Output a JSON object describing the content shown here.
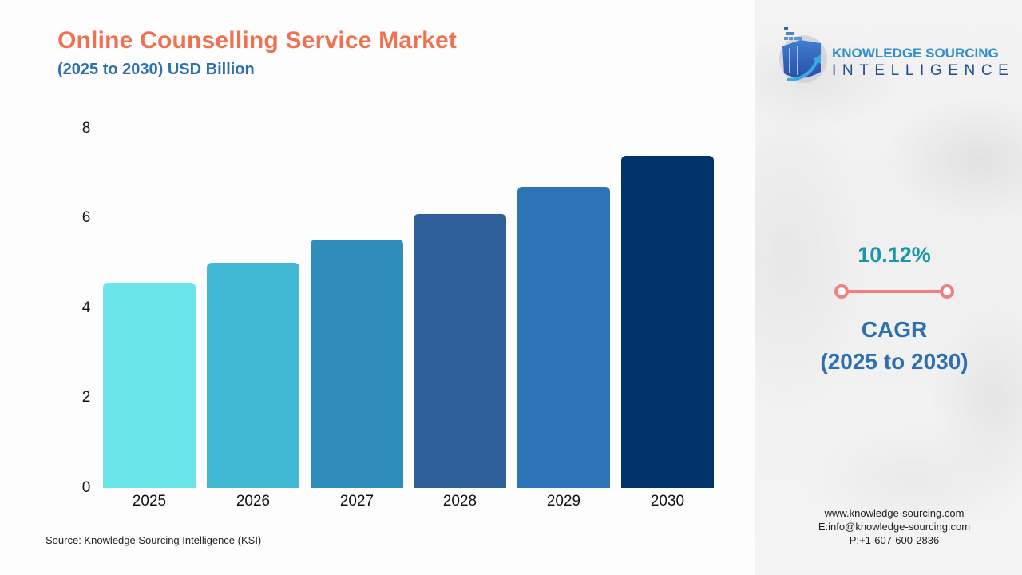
{
  "header": {
    "title": "Online Counselling Service Market",
    "subtitle": "(2025 to 2030) USD Billion"
  },
  "colors": {
    "title": "#f07050",
    "subtitle": "#2e6fb0",
    "cagr_value": "#1a97a6",
    "cagr_connector": "#f08080",
    "bars": [
      "#6ce5e8",
      "#42b8d4",
      "#2f8dbb",
      "#2e5f98",
      "#2c74b5",
      "#00336a"
    ]
  },
  "chart_data": {
    "type": "bar",
    "title": "Online Counselling Service Market",
    "subtitle": "(2025 to 2030) USD Billion",
    "xlabel": "",
    "ylabel": "USD Billion",
    "categories": [
      "2025",
      "2026",
      "2027",
      "2028",
      "2029",
      "2030"
    ],
    "values": [
      4.57,
      5.02,
      5.53,
      6.1,
      6.7,
      7.4
    ],
    "ylim": [
      0,
      8
    ],
    "yticks": [
      "0",
      "2",
      "4",
      "6",
      "8"
    ],
    "grid": false,
    "legend": "none"
  },
  "source": "Source: Knowledge Sourcing Intelligence (KSI)",
  "brand": {
    "line1": "KNOWLEDGE SOURCING",
    "line2": "INTELLIGENCE",
    "logo_icon": "building-arrow-logo-icon"
  },
  "cagr": {
    "value": "10.12%",
    "label_line1": "CAGR",
    "label_line2": "(2025 to 2030)"
  },
  "contact": {
    "website": "www.knowledge-sourcing.com",
    "email": "E:info@knowledge-sourcing.com",
    "phone": "P:+1-607-600-2836"
  }
}
